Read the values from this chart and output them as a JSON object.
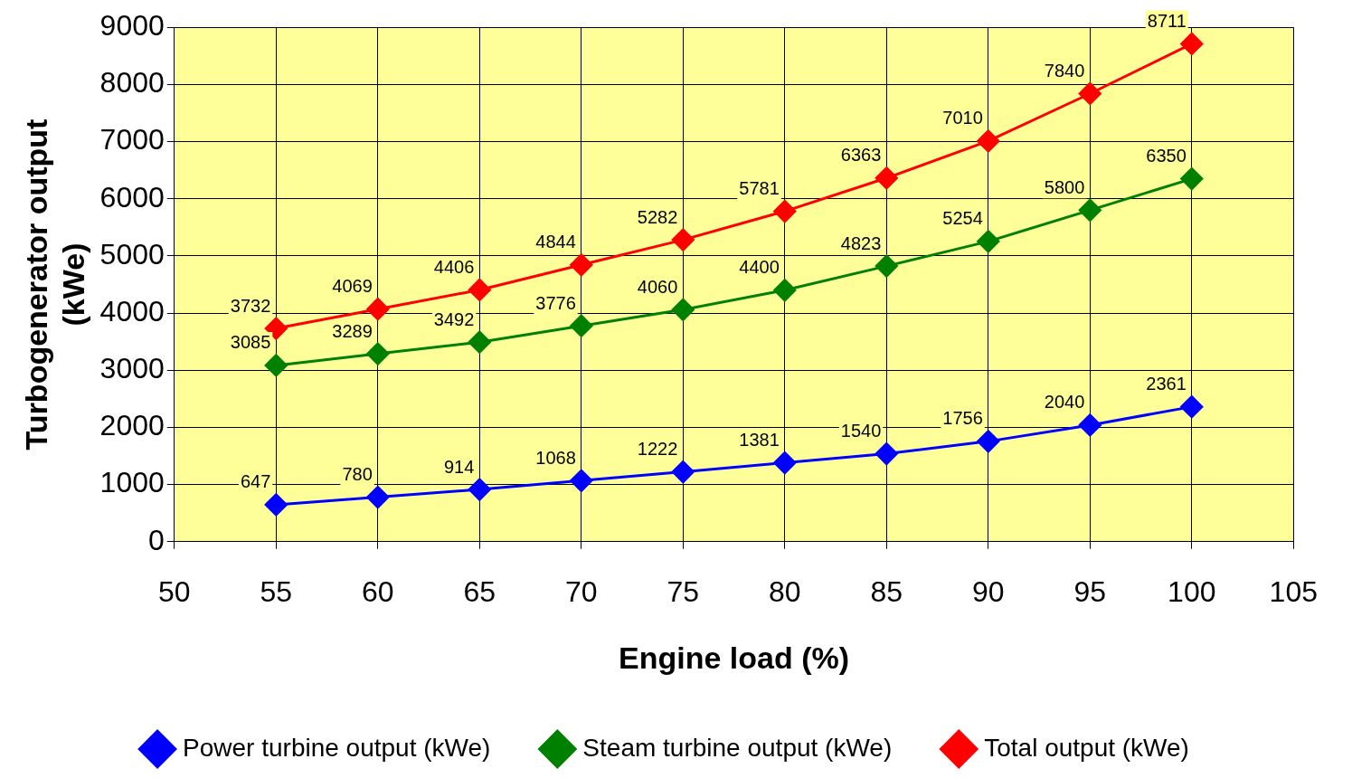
{
  "chart_data": {
    "type": "line",
    "xlabel": "Engine load (%)",
    "ylabel": "Turbogenerator output (kWe)",
    "x": [
      55,
      60,
      65,
      70,
      75,
      80,
      85,
      90,
      95,
      100
    ],
    "series": [
      {
        "name": "Power turbine output (kWe)",
        "color": "#0000ff",
        "values": [
          647,
          780,
          914,
          1068,
          1222,
          1381,
          1540,
          1756,
          2040,
          2361
        ]
      },
      {
        "name": "Steam turbine output (kWe)",
        "color": "#008000",
        "values": [
          3085,
          3289,
          3492,
          3776,
          4060,
          4400,
          4823,
          5254,
          5800,
          6350
        ]
      },
      {
        "name": "Total output (kWe)",
        "color": "#ff0000",
        "values": [
          3732,
          4069,
          4406,
          4844,
          5282,
          5781,
          6363,
          7010,
          7840,
          8711
        ]
      }
    ],
    "xlim": [
      50,
      105
    ],
    "xticks": [
      50,
      55,
      60,
      65,
      70,
      75,
      80,
      85,
      90,
      95,
      100,
      105
    ],
    "ylim": [
      0,
      9000
    ],
    "yticks": [
      0,
      1000,
      2000,
      3000,
      4000,
      5000,
      6000,
      7000,
      8000,
      9000
    ],
    "grid": true,
    "legend": "bottom",
    "marker": "diamond",
    "line_style": "solid",
    "data_labels": true
  }
}
